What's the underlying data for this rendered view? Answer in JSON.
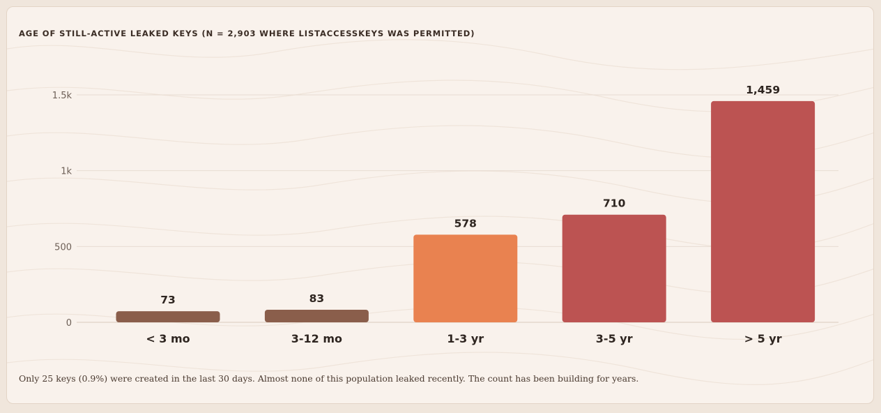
{
  "colors": {
    "brown": "#8a5e4b",
    "orange": "#e98250",
    "red": "#bc5352",
    "grid": "#e8dcd2",
    "baseline": "#d9cabd"
  },
  "chart_data": {
    "type": "bar",
    "title": "AGE OF STILL-ACTIVE LEAKED KEYS (N = 2,903 WHERE LISTACCESSKEYS WAS PERMITTED)",
    "categories": [
      "< 3 mo",
      "3-12 mo",
      "1-3 yr",
      "3-5 yr",
      "> 5 yr"
    ],
    "values": [
      73,
      83,
      578,
      710,
      1459
    ],
    "value_labels": [
      "73",
      "83",
      "578",
      "710",
      "1,459"
    ],
    "bar_colors": [
      "#8a5e4b",
      "#8a5e4b",
      "#e98250",
      "#bc5352",
      "#bc5352"
    ],
    "yticks": [
      0,
      500,
      1000,
      1500
    ],
    "ytick_labels": [
      "0",
      "500",
      "1k",
      "1.5k"
    ],
    "ylim": [
      0,
      1500
    ],
    "grid": true,
    "xlabel": "",
    "ylabel": ""
  },
  "footnote": "Only 25 keys (0.9%) were created in the last 30 days. Almost none of this population leaked recently. The count has been building for years."
}
